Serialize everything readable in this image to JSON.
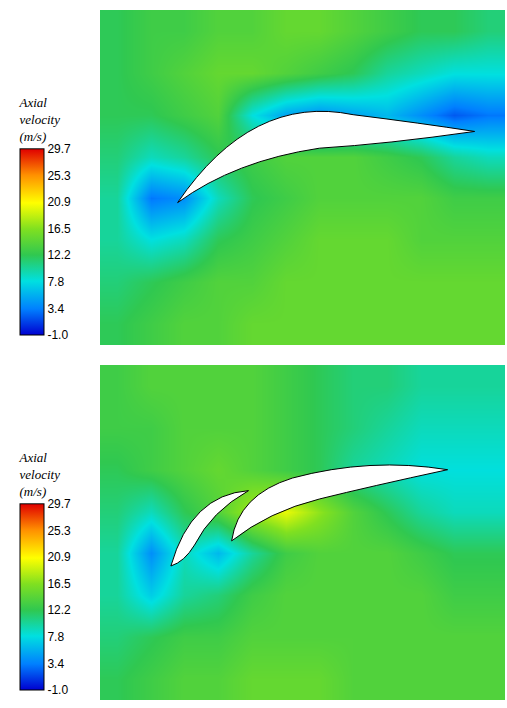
{
  "chart_data": [
    {
      "type": "heatmap",
      "colorbar_title": "Axial velocity (m/s)",
      "zlim": [
        -1,
        29.7
      ],
      "zticks": [
        {
          "value": -1,
          "label": "-1.0"
        },
        3.4,
        7.8,
        12.2,
        16.5,
        20.9,
        25.3,
        29.7
      ],
      "tick_labels": false,
      "cells": [
        [
          12,
          13,
          14,
          14,
          15,
          15,
          15,
          15,
          15,
          15,
          15,
          15
        ],
        [
          11,
          12,
          13,
          14,
          14,
          15,
          15,
          15,
          15,
          15,
          15,
          15
        ],
        [
          10,
          8,
          9,
          12,
          13,
          14,
          15,
          15,
          15,
          14,
          14,
          14
        ],
        [
          10,
          3,
          4,
          9,
          12,
          13,
          14,
          14,
          14,
          14,
          13,
          13
        ],
        [
          11,
          9,
          10,
          12,
          13,
          14,
          14,
          14,
          13,
          12,
          10,
          9
        ],
        [
          12,
          12,
          13,
          14,
          8,
          5,
          4,
          5,
          6,
          4,
          2,
          3
        ],
        [
          12,
          13,
          14,
          15,
          15,
          14,
          13,
          12,
          10,
          9,
          8,
          8
        ],
        [
          12,
          13,
          13,
          14,
          14,
          15,
          15,
          14,
          13,
          12,
          12,
          11
        ]
      ]
    },
    {
      "type": "heatmap",
      "colorbar_title": "Axial velocity (m/s)",
      "zlim": [
        -1,
        29.7
      ],
      "zticks": [
        {
          "value": -1,
          "label": "-1.0"
        },
        3.4,
        7.8,
        12.2,
        16.5,
        20.9,
        25.3,
        29.7
      ],
      "tick_labels": false,
      "cells": [
        [
          12,
          13,
          14,
          14,
          15,
          15,
          15,
          14,
          14,
          14,
          14,
          14
        ],
        [
          11,
          12,
          13,
          13,
          14,
          14,
          14,
          14,
          14,
          14,
          14,
          14
        ],
        [
          10,
          7,
          10,
          11,
          13,
          14,
          14,
          14,
          14,
          14,
          13,
          13
        ],
        [
          10,
          4,
          9,
          6,
          10,
          13,
          14,
          14,
          14,
          13,
          12,
          12
        ],
        [
          11,
          9,
          12,
          14,
          18,
          20,
          17,
          14,
          12,
          10,
          9,
          9
        ],
        [
          12,
          13,
          14,
          15,
          14,
          13,
          12,
          10,
          9,
          8,
          8,
          8
        ],
        [
          13,
          13,
          14,
          14,
          14,
          13,
          12,
          11,
          10,
          9,
          9,
          9
        ],
        [
          13,
          14,
          14,
          14,
          14,
          13,
          12,
          11,
          11,
          10,
          10,
          10
        ]
      ]
    }
  ]
}
